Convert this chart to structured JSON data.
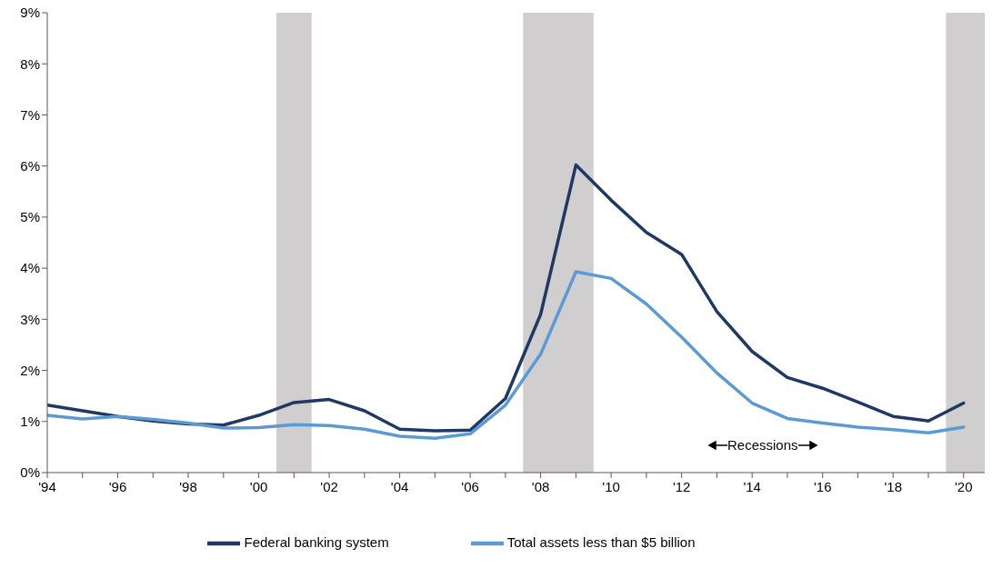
{
  "chart_data": {
    "type": "line",
    "x": [
      1994,
      1995,
      1996,
      1997,
      1998,
      1999,
      2000,
      2001,
      2002,
      2003,
      2004,
      2005,
      2006,
      2007,
      2008,
      2009,
      2010,
      2011,
      2012,
      2013,
      2014,
      2015,
      2016,
      2017,
      2018,
      2019,
      2020
    ],
    "series": [
      {
        "name": "Federal banking system",
        "color": "#1f3864",
        "values": [
          1.32,
          1.21,
          1.1,
          1.01,
          0.95,
          0.93,
          1.12,
          1.37,
          1.43,
          1.21,
          0.85,
          0.82,
          0.83,
          1.45,
          3.1,
          6.02,
          5.33,
          4.7,
          4.27,
          3.15,
          2.37,
          1.86,
          1.65,
          1.38,
          1.1,
          1.01,
          1.36
        ]
      },
      {
        "name": "Total assets less than $5 billion",
        "color": "#5b9bd5",
        "values": [
          1.12,
          1.05,
          1.1,
          1.04,
          0.97,
          0.87,
          0.88,
          0.94,
          0.92,
          0.85,
          0.71,
          0.67,
          0.76,
          1.32,
          2.32,
          3.93,
          3.8,
          3.3,
          2.65,
          1.95,
          1.36,
          1.06,
          0.97,
          0.89,
          0.84,
          0.78,
          0.89
        ]
      }
    ],
    "xlim": [
      1994,
      2020.6
    ],
    "xticks": [
      {
        "value": 1994,
        "label": "'94"
      },
      {
        "value": 1995,
        "label": null
      },
      {
        "value": 1996,
        "label": "'96"
      },
      {
        "value": 1997,
        "label": null
      },
      {
        "value": 1998,
        "label": "'98"
      },
      {
        "value": 1999,
        "label": null
      },
      {
        "value": 2000,
        "label": "'00"
      },
      {
        "value": 2001,
        "label": null
      },
      {
        "value": 2002,
        "label": "'02"
      },
      {
        "value": 2003,
        "label": null
      },
      {
        "value": 2004,
        "label": "'04"
      },
      {
        "value": 2005,
        "label": null
      },
      {
        "value": 2006,
        "label": "'06"
      },
      {
        "value": 2007,
        "label": null
      },
      {
        "value": 2008,
        "label": "'08"
      },
      {
        "value": 2009,
        "label": null
      },
      {
        "value": 2010,
        "label": "'10"
      },
      {
        "value": 2011,
        "label": null
      },
      {
        "value": 2012,
        "label": "'12"
      },
      {
        "value": 2013,
        "label": null
      },
      {
        "value": 2014,
        "label": "'14"
      },
      {
        "value": 2015,
        "label": null
      },
      {
        "value": 2016,
        "label": "'16"
      },
      {
        "value": 2017,
        "label": null
      },
      {
        "value": 2018,
        "label": "'18"
      },
      {
        "value": 2019,
        "label": null
      },
      {
        "value": 2020,
        "label": "'20"
      }
    ],
    "ylim": [
      0,
      9
    ],
    "yticks": [
      {
        "value": 0,
        "label": "0%"
      },
      {
        "value": 1,
        "label": "1%"
      },
      {
        "value": 2,
        "label": "2%"
      },
      {
        "value": 3,
        "label": "3%"
      },
      {
        "value": 4,
        "label": "4%"
      },
      {
        "value": 5,
        "label": "5%"
      },
      {
        "value": 6,
        "label": "6%"
      },
      {
        "value": 7,
        "label": "7%"
      },
      {
        "value": 8,
        "label": "8%"
      },
      {
        "value": 9,
        "label": "9%"
      }
    ],
    "bands": [
      {
        "axis": "x",
        "from": 2000.5,
        "to": 2001.5,
        "color": "#d0cece"
      },
      {
        "axis": "x",
        "from": 2007.5,
        "to": 2009.5,
        "color": "#d0cece"
      },
      {
        "axis": "x",
        "from": 2019.5,
        "to": 2020.6,
        "color": "#d0cece"
      }
    ],
    "annotations": [
      "Recessions"
    ],
    "grid": false,
    "legend": "bottom"
  }
}
